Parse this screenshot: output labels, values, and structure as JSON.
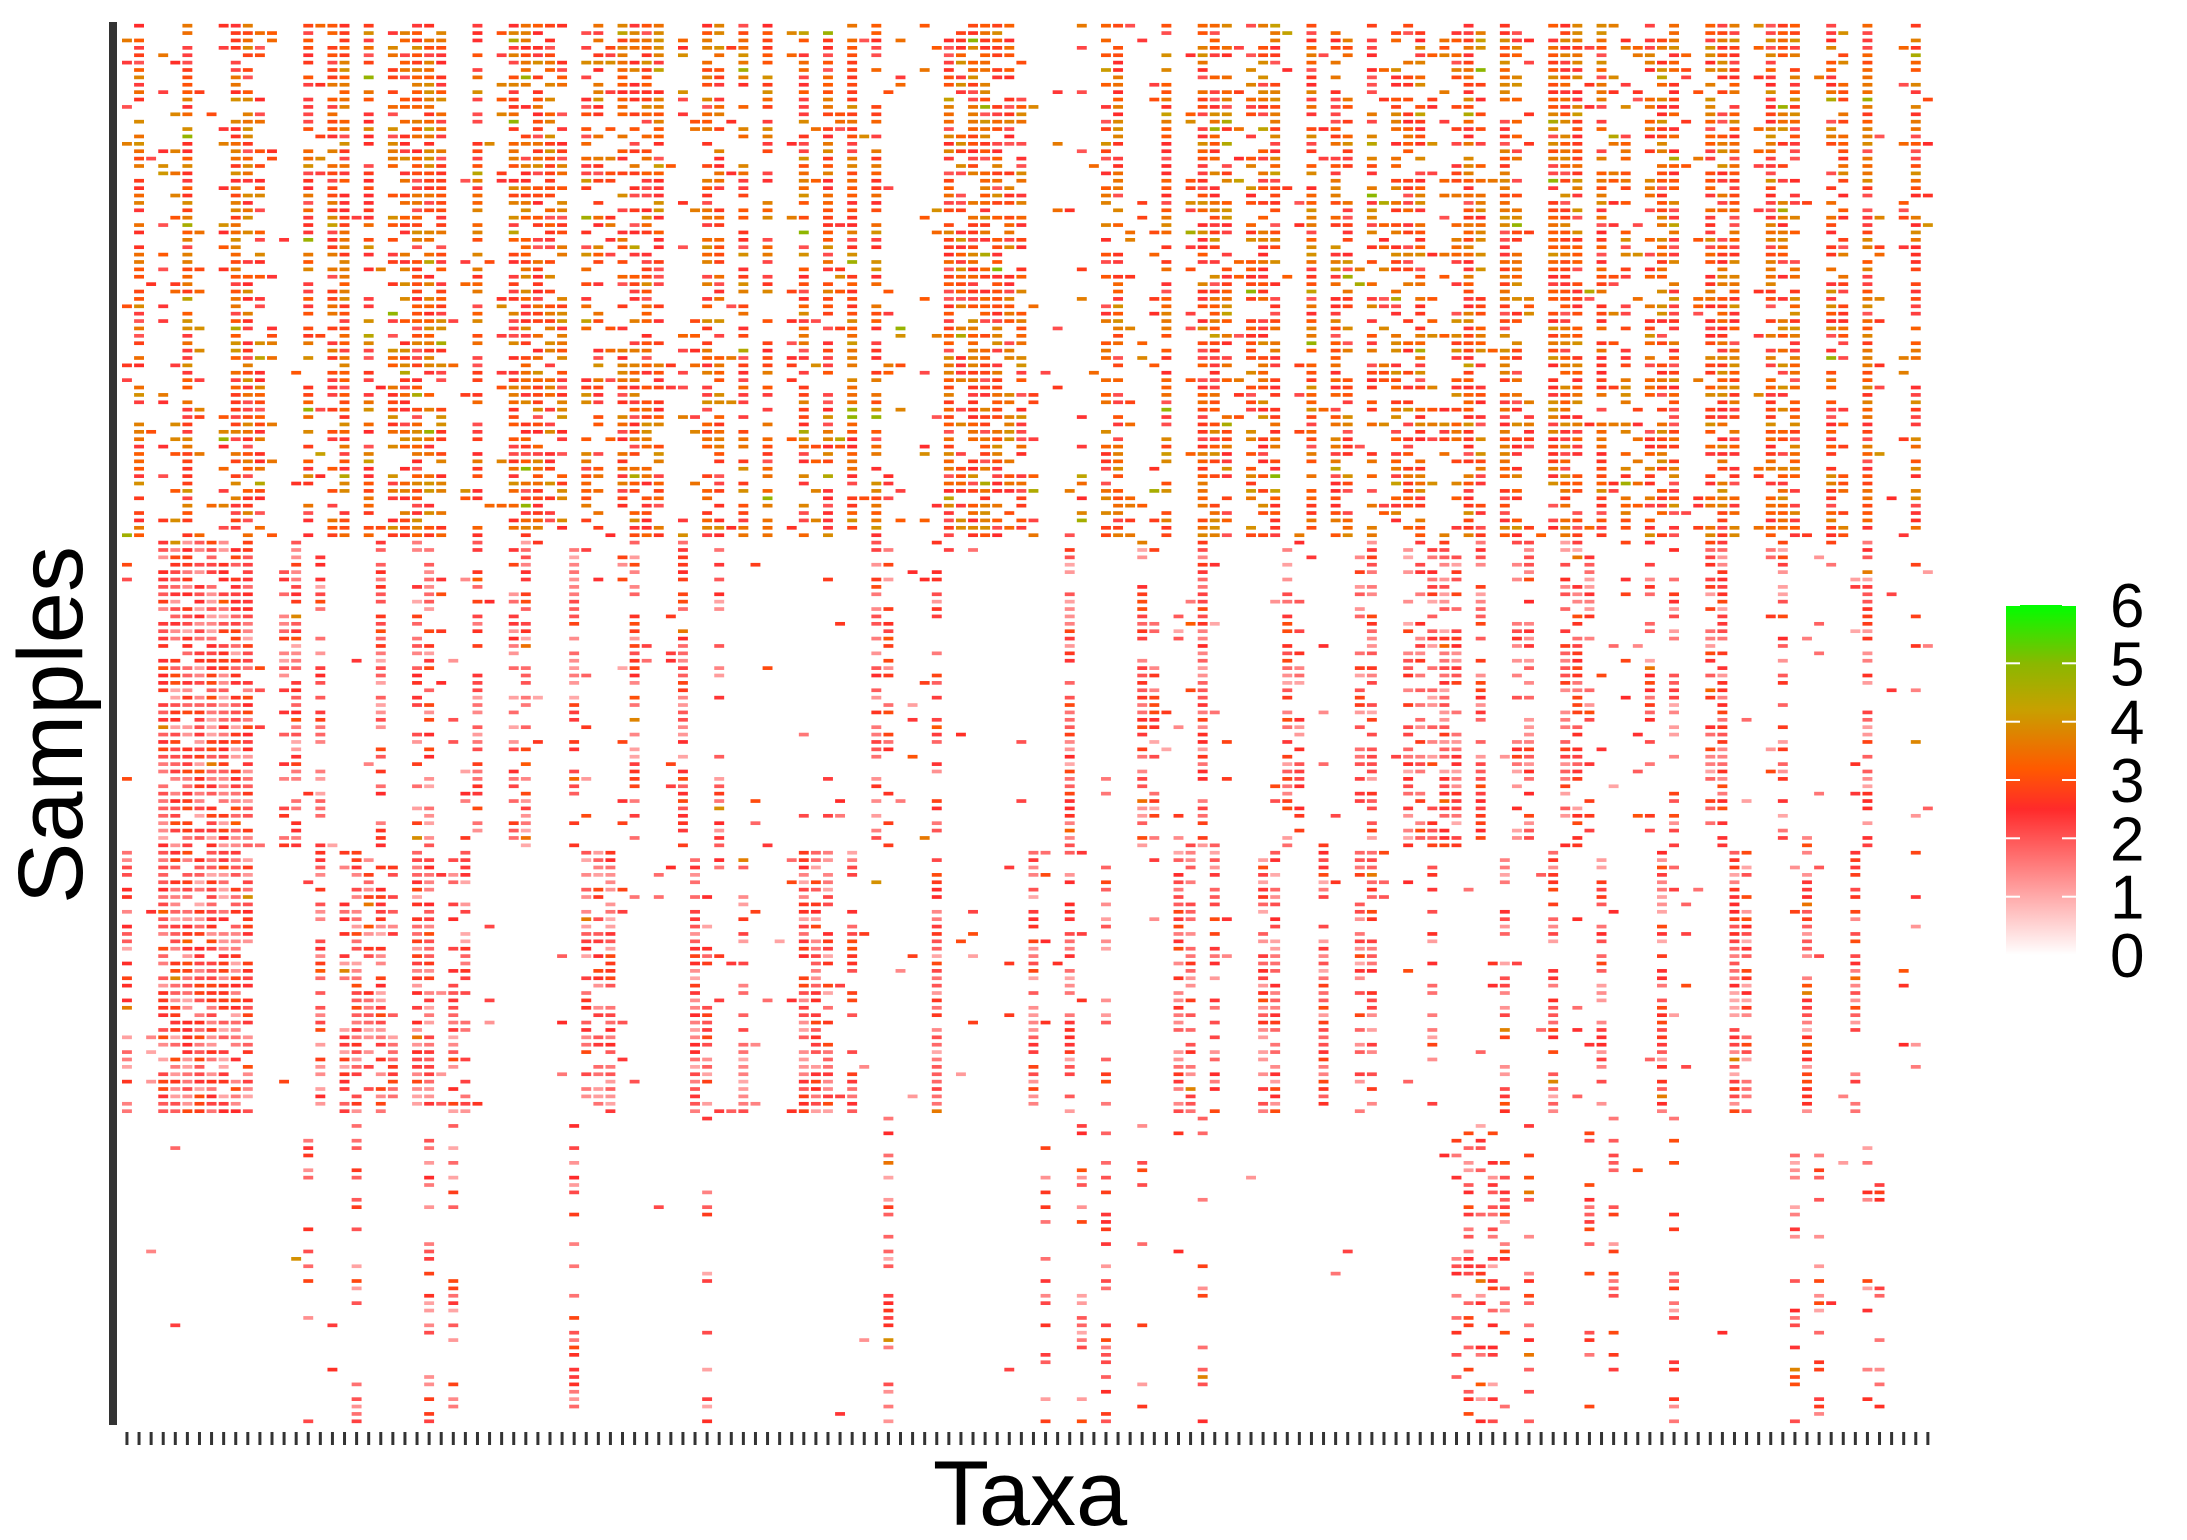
{
  "chart_data": {
    "type": "heatmap",
    "title": "",
    "xlabel": "Taxa",
    "ylabel": "Samples",
    "x_tick_labels_shown": false,
    "y_tick_labels_shown": false,
    "n_taxa_columns_approx": 150,
    "n_samples_rows_approx": 190,
    "sample_groups": [
      {
        "rows_fraction": [
          0.0,
          0.365
        ],
        "density": "high",
        "dominant_values": [
          2,
          4
        ]
      },
      {
        "rows_fraction": [
          0.365,
          0.585
        ],
        "density": "medium",
        "dominant_values": [
          1,
          3
        ]
      },
      {
        "rows_fraction": [
          0.585,
          0.775
        ],
        "density": "medium",
        "dominant_values": [
          1,
          3
        ]
      },
      {
        "rows_fraction": [
          0.775,
          1.0
        ],
        "density": "low",
        "dominant_values": [
          1,
          3
        ]
      }
    ],
    "colorbar": {
      "min": 0,
      "max": 6,
      "ticks": [
        "0",
        "1",
        "2",
        "3",
        "4",
        "5",
        "6"
      ],
      "color_stops": [
        {
          "value": 0,
          "color": "#ffffff"
        },
        {
          "value": 2.5,
          "color": "#ff2a2a"
        },
        {
          "value": 3.2,
          "color": "#ff5a00"
        },
        {
          "value": 4.2,
          "color": "#c8a000"
        },
        {
          "value": 5.0,
          "color": "#8ab800"
        },
        {
          "value": 6,
          "color": "#00ff00"
        }
      ]
    }
  }
}
